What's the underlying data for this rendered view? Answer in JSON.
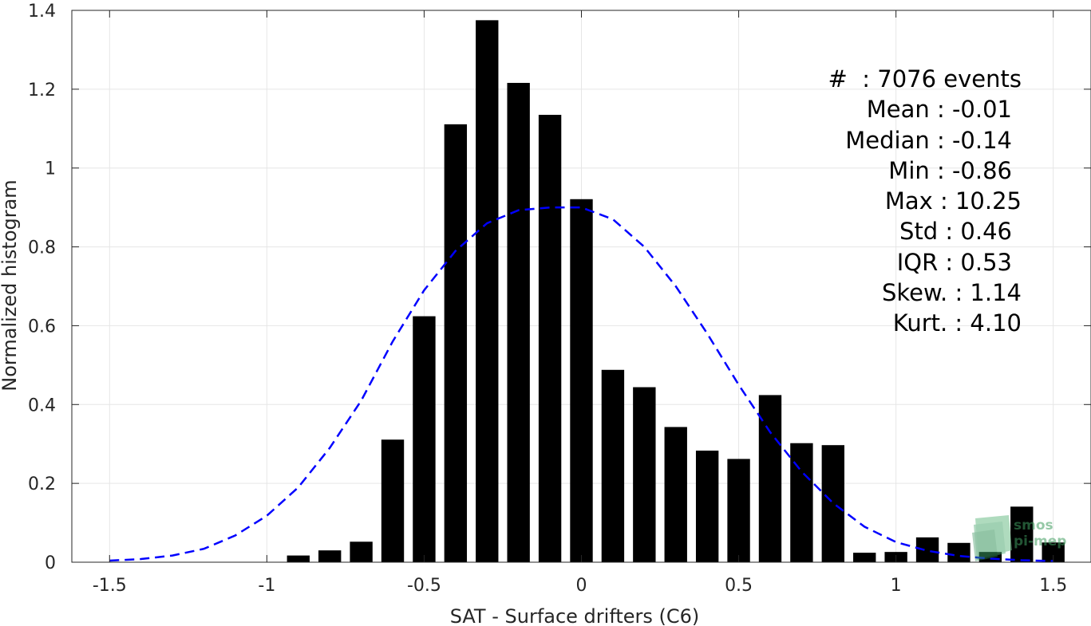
{
  "chart_data": {
    "type": "bar",
    "xlabel": "SAT - Surface drifters (C6)",
    "ylabel": "Normalized histogram",
    "xlim": [
      -1.62,
      1.62
    ],
    "ylim": [
      0,
      1.4
    ],
    "xticks": [
      -1.5,
      -1,
      -0.5,
      0,
      0.5,
      1,
      1.5
    ],
    "xtick_labels": [
      "-1.5",
      "-1",
      "-0.5",
      "0",
      "0.5",
      "1",
      "1.5"
    ],
    "yticks": [
      0,
      0.2,
      0.4,
      0.6,
      0.8,
      1.0,
      1.2,
      1.4
    ],
    "ytick_labels": [
      "0",
      "0.2",
      "0.4",
      "0.6",
      "0.8",
      "1",
      "1.2",
      "1.4"
    ],
    "grid": true,
    "bar_color": "#000000",
    "bar_width": 0.072,
    "bins": [
      -0.9,
      -0.8,
      -0.7,
      -0.6,
      -0.5,
      -0.4,
      -0.3,
      -0.2,
      -0.1,
      0.0,
      0.1,
      0.2,
      0.3,
      0.4,
      0.5,
      0.6,
      0.7,
      0.8,
      0.9,
      1.0,
      1.1,
      1.2,
      1.3,
      1.4,
      1.5
    ],
    "values": [
      0.017,
      0.03,
      0.052,
      0.311,
      0.624,
      1.111,
      1.375,
      1.216,
      1.135,
      0.921,
      0.488,
      0.444,
      0.343,
      0.283,
      0.262,
      0.424,
      0.302,
      0.297,
      0.024,
      0.026,
      0.063,
      0.049,
      0.026,
      0.141,
      0.05
    ],
    "curve": {
      "color": "#0000ff",
      "style": "dashed",
      "x": [
        -1.5,
        -1.4,
        -1.3,
        -1.2,
        -1.1,
        -1.0,
        -0.9,
        -0.8,
        -0.7,
        -0.6,
        -0.5,
        -0.4,
        -0.3,
        -0.2,
        -0.1,
        0.0,
        0.1,
        0.2,
        0.3,
        0.4,
        0.5,
        0.6,
        0.7,
        0.8,
        0.9,
        1.0,
        1.1,
        1.2,
        1.3,
        1.4,
        1.5
      ],
      "y": [
        0.004,
        0.008,
        0.017,
        0.034,
        0.068,
        0.118,
        0.19,
        0.29,
        0.41,
        0.56,
        0.69,
        0.79,
        0.86,
        0.893,
        0.9,
        0.9,
        0.87,
        0.8,
        0.7,
        0.58,
        0.45,
        0.33,
        0.23,
        0.15,
        0.09,
        0.051,
        0.029,
        0.016,
        0.009,
        0.005,
        0.003
      ]
    }
  },
  "stats": {
    "lines": [
      {
        "text": "#  : 7076 events",
        "indent": 12
      },
      {
        "text": "Mean : -0.01",
        "indent": 0
      },
      {
        "text": "Median : -0.14",
        "indent": 0
      },
      {
        "text": "Min : -0.86",
        "indent": 0
      },
      {
        "text": "Max : 10.25",
        "indent": 12
      },
      {
        "text": "Std : 0.46",
        "indent": 0
      },
      {
        "text": "IQR : 0.53",
        "indent": 0
      },
      {
        "text": "Skew. : 1.14",
        "indent": 12
      },
      {
        "text": "Kurt. : 4.10",
        "indent": 12
      }
    ]
  },
  "logo": {
    "line1": "smos",
    "line2": "pi-mep",
    "color": "#3f9c5f"
  }
}
